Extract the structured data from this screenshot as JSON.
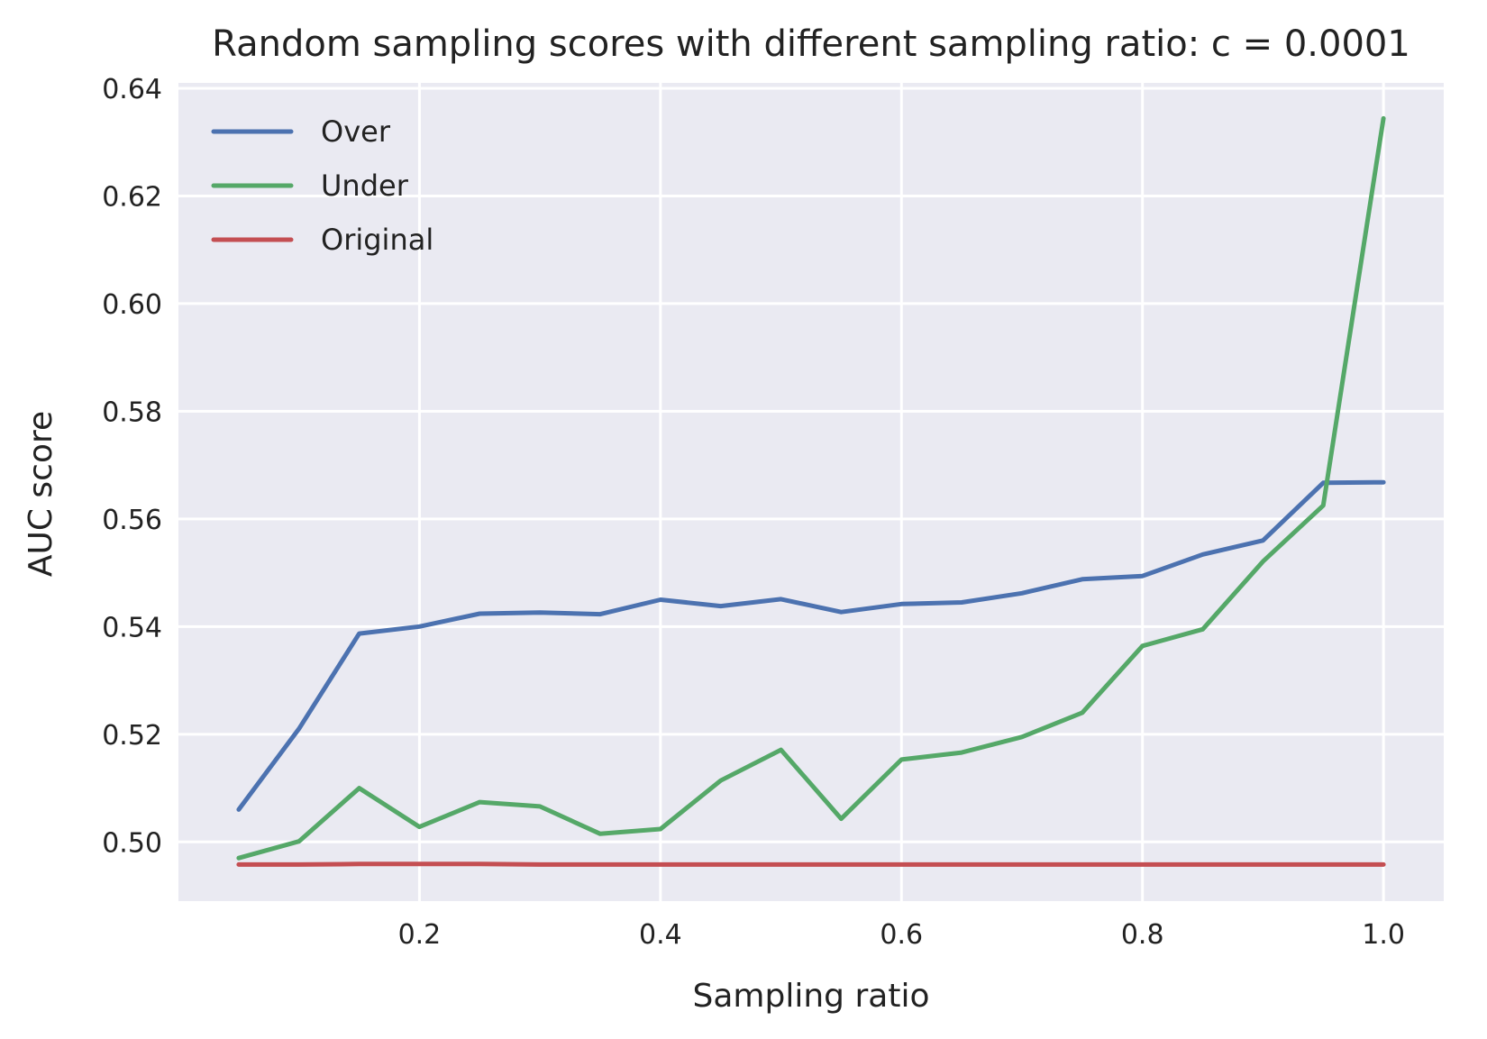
{
  "chart_data": {
    "type": "line",
    "title": "Random sampling scores with different sampling ratio: c = 0.0001",
    "xlabel": "Sampling ratio",
    "ylabel": "AUC score",
    "xlim": [
      0.0,
      1.05
    ],
    "ylim": [
      0.489,
      0.641
    ],
    "xticks": [
      {
        "value": 0.2,
        "label": "0.2"
      },
      {
        "value": 0.4,
        "label": "0.4"
      },
      {
        "value": 0.6,
        "label": "0.6"
      },
      {
        "value": 0.8,
        "label": "0.8"
      },
      {
        "value": 1.0,
        "label": "1.0"
      }
    ],
    "yticks": [
      {
        "value": 0.5,
        "label": "0.50"
      },
      {
        "value": 0.52,
        "label": "0.52"
      },
      {
        "value": 0.54,
        "label": "0.54"
      },
      {
        "value": 0.56,
        "label": "0.56"
      },
      {
        "value": 0.58,
        "label": "0.58"
      },
      {
        "value": 0.6,
        "label": "0.60"
      },
      {
        "value": 0.62,
        "label": "0.62"
      },
      {
        "value": 0.64,
        "label": "0.64"
      }
    ],
    "grid": true,
    "background_color": "#EAEAF2",
    "legend_position": "top-left",
    "x": [
      0.05,
      0.1,
      0.15,
      0.2,
      0.25,
      0.3,
      0.35,
      0.4,
      0.45,
      0.5,
      0.55,
      0.6,
      0.65,
      0.7,
      0.75,
      0.8,
      0.85,
      0.9,
      0.95,
      1.0
    ],
    "series": [
      {
        "name": "Over",
        "color": "#4C72B0",
        "values": [
          0.506,
          0.521,
          0.5387,
          0.54,
          0.5424,
          0.5426,
          0.5423,
          0.545,
          0.5438,
          0.5451,
          0.5427,
          0.5442,
          0.5445,
          0.5462,
          0.5488,
          0.5494,
          0.5534,
          0.556,
          0.5667,
          0.5668
        ]
      },
      {
        "name": "Under",
        "color": "#55A868",
        "values": [
          0.497,
          0.5001,
          0.51,
          0.5028,
          0.5074,
          0.5066,
          0.5015,
          0.5024,
          0.5114,
          0.5171,
          0.5043,
          0.5153,
          0.5166,
          0.5195,
          0.524,
          0.5364,
          0.5395,
          0.5521,
          0.5625,
          0.6344
        ]
      },
      {
        "name": "Original",
        "color": "#C44E52",
        "values": [
          0.4958,
          0.4958,
          0.4959,
          0.4959,
          0.4959,
          0.4958,
          0.4958,
          0.4958,
          0.4958,
          0.4958,
          0.4958,
          0.4958,
          0.4958,
          0.4958,
          0.4958,
          0.4958,
          0.4958,
          0.4958,
          0.4958,
          0.4958
        ]
      }
    ]
  }
}
